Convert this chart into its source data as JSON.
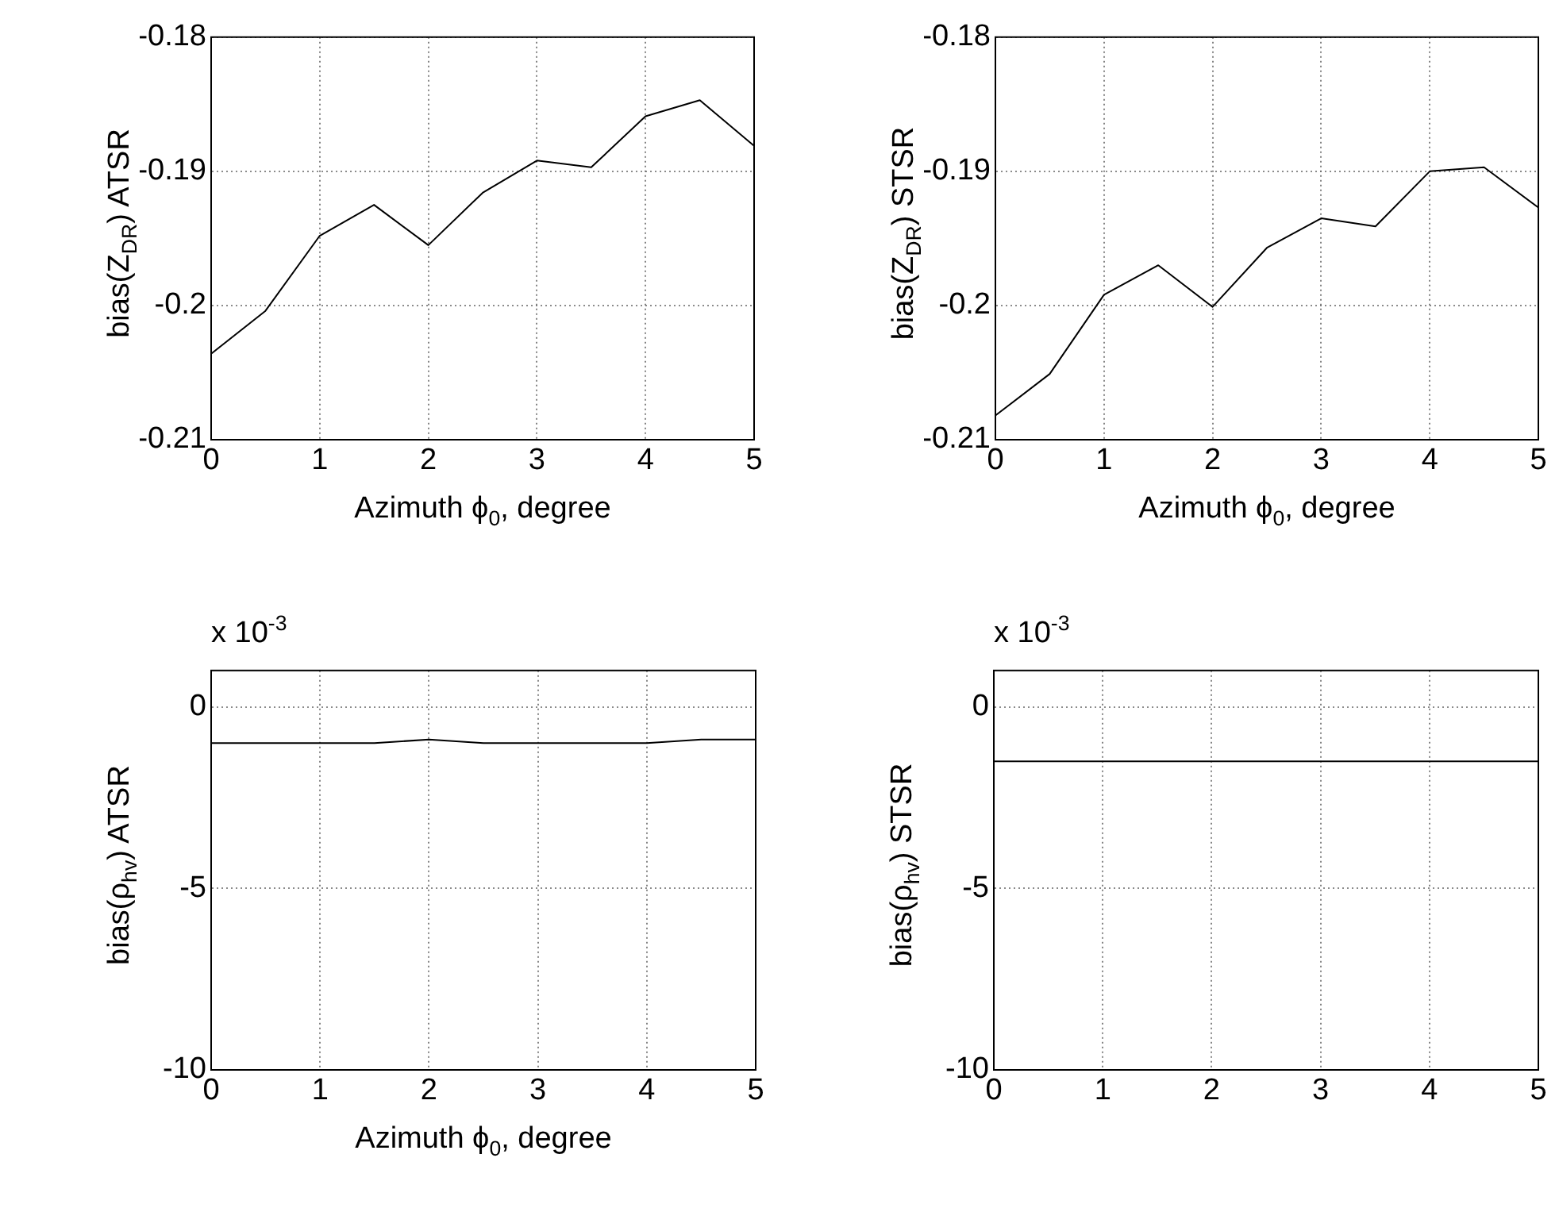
{
  "chart_data": [
    {
      "type": "line",
      "xlabel": "Azimuth ϕ$_{0}$, degree",
      "ylabel": "bias(Z$_{DR}$) ATSR",
      "x": [
        0,
        0.5,
        1,
        1.5,
        2,
        2.5,
        3,
        3.5,
        4,
        4.5,
        5
      ],
      "values": [
        -0.2036,
        -0.2004,
        -0.1948,
        -0.1925,
        -0.1955,
        -0.1916,
        -0.1892,
        -0.1897,
        -0.1859,
        -0.1847,
        -0.1881
      ],
      "color": "#000000",
      "xlim": [
        0,
        5
      ],
      "xticks": [
        0,
        1,
        2,
        3,
        4,
        5
      ],
      "ylim": [
        -0.21,
        -0.18
      ],
      "yticks": [
        -0.21,
        -0.2,
        -0.19,
        -0.18
      ],
      "grid": true,
      "marker": "none"
    },
    {
      "type": "line",
      "xlabel": "Azimuth ϕ$_{0}$, degree",
      "ylabel": "bias(Z$_{DR}$) STSR",
      "x": [
        0,
        0.5,
        1,
        1.5,
        2,
        2.5,
        3,
        3.5,
        4,
        4.5,
        5
      ],
      "values": [
        -0.2082,
        -0.2051,
        -0.1992,
        -0.197,
        -0.2001,
        -0.1957,
        -0.1935,
        -0.1941,
        -0.19,
        -0.1897,
        -0.1927
      ],
      "color": "#000000",
      "xlim": [
        0,
        5
      ],
      "xticks": [
        0,
        1,
        2,
        3,
        4,
        5
      ],
      "ylim": [
        -0.21,
        -0.18
      ],
      "yticks": [
        -0.21,
        -0.2,
        -0.19,
        -0.18
      ],
      "grid": true,
      "marker": "none"
    },
    {
      "type": "line",
      "xlabel": "Azimuth ϕ$_{0}$, degree",
      "ylabel": "bias(ρ$_{hv}$) ATSR",
      "annotations": [
        "x 10$^{-3}$"
      ],
      "x": [
        0,
        0.5,
        1,
        1.5,
        2,
        2.5,
        3,
        3.5,
        4,
        4.5,
        5
      ],
      "values": [
        -1.0,
        -1.0,
        -1.0,
        -1.0,
        -0.9,
        -1.0,
        -1.0,
        -1.0,
        -1.0,
        -0.9,
        -0.9
      ],
      "color": "#000000",
      "xlim": [
        0,
        5
      ],
      "xticks": [
        0,
        1,
        2,
        3,
        4,
        5
      ],
      "ylim": [
        -10,
        1
      ],
      "yticks": [
        -10,
        -5,
        0
      ],
      "grid": true,
      "marker": "none"
    },
    {
      "type": "line",
      "ylabel": "bias(ρ$_{hv}$) STSR",
      "annotations": [
        "x 10$^{-3}$"
      ],
      "x": [
        0,
        0.5,
        1,
        1.5,
        2,
        2.5,
        3,
        3.5,
        4,
        4.5,
        5
      ],
      "values": [
        -1.5,
        -1.5,
        -1.5,
        -1.5,
        -1.5,
        -1.5,
        -1.5,
        -1.5,
        -1.5,
        -1.5,
        -1.5
      ],
      "color": "#000000",
      "xlim": [
        0,
        5
      ],
      "xticks": [
        0,
        1,
        2,
        3,
        4,
        5
      ],
      "ylim": [
        -10,
        1
      ],
      "yticks": [
        -10,
        -5,
        0
      ],
      "grid": true,
      "marker": "none"
    }
  ]
}
